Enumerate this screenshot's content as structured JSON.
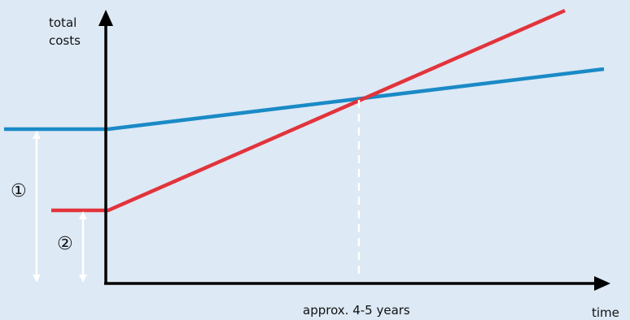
{
  "chart_data": {
    "type": "line",
    "title": "",
    "ylabel_line1": "total",
    "ylabel_line2": "costs",
    "xlabel": "time",
    "break_even_label": "approx. 4-5 years",
    "marker_1": "①",
    "marker_2": "②",
    "colors": {
      "background": "#dde9f5",
      "axis": "#000000",
      "series_a": "#1a8ac6",
      "series_b": "#e2343b",
      "arrows": "#ffffff"
    }
  }
}
